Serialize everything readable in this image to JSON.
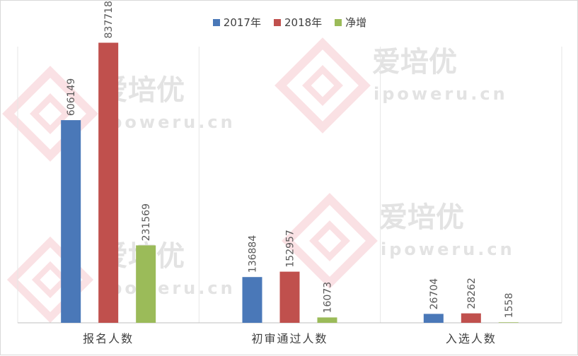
{
  "colors": {
    "series_2017": "#4a78b8",
    "series_2018": "#c0504d",
    "series_net": "#9bbb59",
    "grid": "#e6e6e6",
    "axis": "#bfbfbf",
    "label": "#595959",
    "watermark": "#f6c9cf",
    "watermark_text": "#e3e3e3"
  },
  "watermark": {
    "brand": "爱培优",
    "url": "ipoweru.cn"
  },
  "chart_data": {
    "type": "bar",
    "title": "",
    "xlabel": "",
    "ylabel": "",
    "ylim": [
      0,
      900000
    ],
    "grid": "vertical category separators",
    "legend_position": "top-center",
    "categories": [
      "报名人数",
      "初审通过人数",
      "入选人数"
    ],
    "series": [
      {
        "name": "2017年",
        "color_key": "series_2017",
        "values": [
          606149,
          136884,
          26704
        ]
      },
      {
        "name": "2018年",
        "color_key": "series_2018",
        "values": [
          837718,
          152957,
          28262
        ]
      },
      {
        "name": "净增",
        "color_key": "series_net",
        "values": [
          231569,
          16073,
          1558
        ]
      }
    ]
  }
}
